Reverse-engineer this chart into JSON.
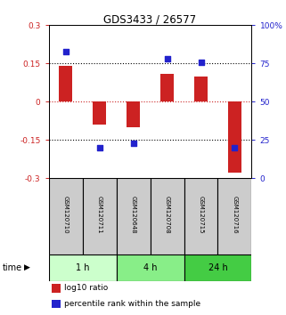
{
  "title": "GDS3433 / 26577",
  "samples": [
    "GSM120710",
    "GSM120711",
    "GSM120648",
    "GSM120708",
    "GSM120715",
    "GSM120716"
  ],
  "log10_ratio": [
    0.14,
    -0.09,
    -0.1,
    0.11,
    0.1,
    -0.28
  ],
  "percentile_rank": [
    83,
    20,
    23,
    78,
    76,
    20
  ],
  "ylim_left": [
    -0.3,
    0.3
  ],
  "ylim_right": [
    0,
    100
  ],
  "yticks_left": [
    -0.3,
    -0.15,
    0,
    0.15,
    0.3
  ],
  "yticks_right": [
    0,
    25,
    50,
    75,
    100
  ],
  "ytick_labels_left": [
    "-0.3",
    "-0.15",
    "0",
    "0.15",
    "0.3"
  ],
  "ytick_labels_right": [
    "0",
    "25",
    "50",
    "75",
    "100%"
  ],
  "hlines_dotted": [
    0.15,
    -0.15
  ],
  "hline_red": 0,
  "time_groups": [
    {
      "label": "1 h",
      "start": 0,
      "end": 2,
      "color": "#ccffcc"
    },
    {
      "label": "4 h",
      "start": 2,
      "end": 4,
      "color": "#88ee88"
    },
    {
      "label": "24 h",
      "start": 4,
      "end": 6,
      "color": "#44cc44"
    }
  ],
  "bar_color": "#cc2222",
  "dot_color": "#2222cc",
  "bar_width": 0.4,
  "dot_size": 25,
  "label_log10": "log10 ratio",
  "label_percentile": "percentile rank within the sample",
  "time_label": "time",
  "ycolor_left": "#cc2222",
  "ycolor_right": "#2222cc",
  "sample_box_color": "#cccccc",
  "figsize": [
    3.21,
    3.54
  ],
  "dpi": 100
}
